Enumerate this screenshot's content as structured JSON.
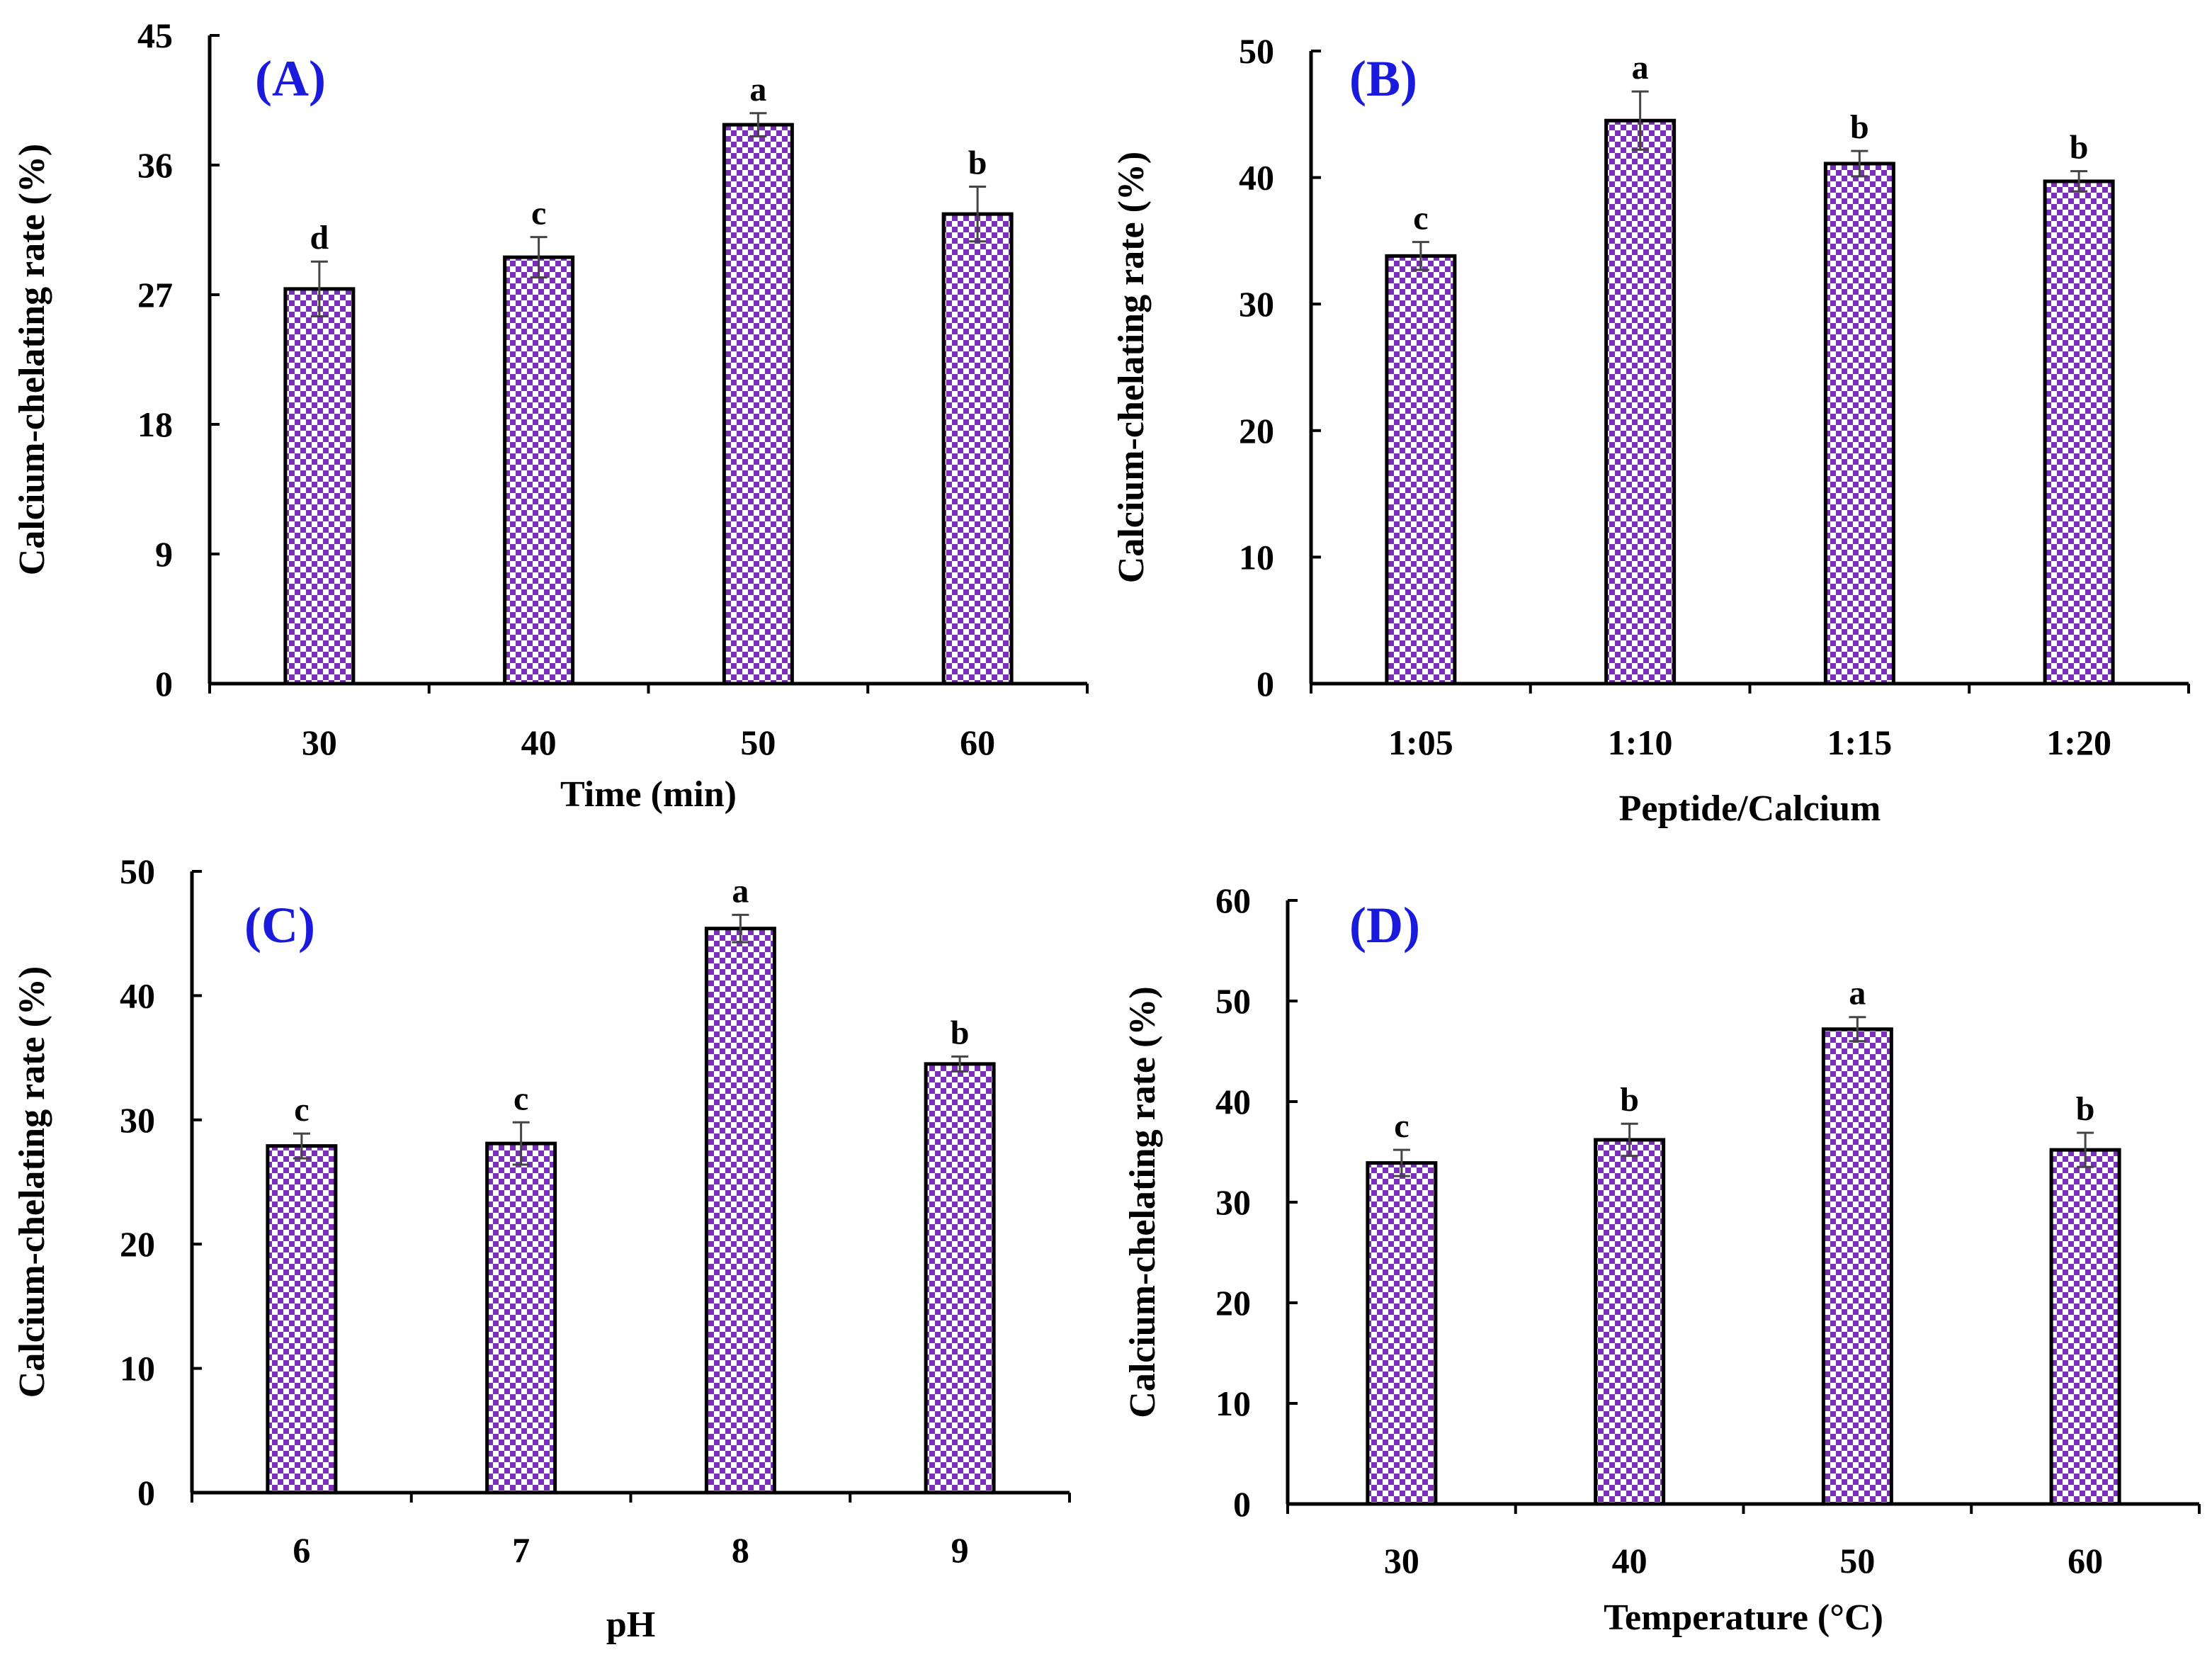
{
  "style": {
    "bar_fill": "#7a2fb8",
    "bar_check": "#ffffff",
    "bar_stroke": "#000000",
    "error_bar_color": "#444444",
    "axis_color": "#000000",
    "panel_label_color": "#1a1adc"
  },
  "chart_data": [
    {
      "type": "bar",
      "panel_label": "(A)",
      "categories": [
        "30",
        "40",
        "50",
        "60"
      ],
      "values": [
        27.4,
        29.6,
        38.8,
        32.6
      ],
      "errors": [
        1.9,
        1.4,
        0.8,
        1.9
      ],
      "significance": [
        "d",
        "c",
        "a",
        "b"
      ],
      "xlabel": "Time (min)",
      "ylabel": "Calcium-chelating rate (%)",
      "ylim": [
        0,
        45
      ],
      "yticks": [
        0,
        9,
        18,
        27,
        36,
        45
      ]
    },
    {
      "type": "bar",
      "panel_label": "(B)",
      "categories": [
        "1:05",
        "1:10",
        "1:15",
        "1:20"
      ],
      "values": [
        33.8,
        44.5,
        41.1,
        39.7
      ],
      "errors": [
        1.1,
        2.3,
        1.0,
        0.8
      ],
      "significance": [
        "c",
        "a",
        "b",
        "b"
      ],
      "xlabel": "Peptide/Calcium",
      "ylabel": "Calcium-chelating rate (%)",
      "ylim": [
        0,
        50
      ],
      "yticks": [
        0,
        10,
        20,
        30,
        40,
        50
      ]
    },
    {
      "type": "bar",
      "panel_label": "(C)",
      "categories": [
        "6",
        "7",
        "8",
        "9"
      ],
      "values": [
        27.9,
        28.1,
        45.4,
        34.5
      ],
      "errors": [
        1.0,
        1.7,
        1.1,
        0.6
      ],
      "significance": [
        "c",
        "c",
        "a",
        "b"
      ],
      "xlabel": "pH",
      "ylabel": "Calcium-chelating rate (%)",
      "ylim": [
        0,
        50
      ],
      "yticks": [
        0,
        10,
        20,
        30,
        40,
        50
      ]
    },
    {
      "type": "bar",
      "panel_label": "(D)",
      "categories": [
        "30",
        "40",
        "50",
        "60"
      ],
      "values": [
        33.9,
        36.2,
        47.2,
        35.2
      ],
      "errors": [
        1.3,
        1.6,
        1.2,
        1.7
      ],
      "significance": [
        "c",
        "b",
        "a",
        "b"
      ],
      "xlabel": "Temperature (°C)",
      "ylabel": "Calcium-chelating rate (%)",
      "ylim": [
        0,
        60
      ],
      "yticks": [
        0,
        10,
        20,
        30,
        40,
        50,
        60
      ]
    }
  ]
}
